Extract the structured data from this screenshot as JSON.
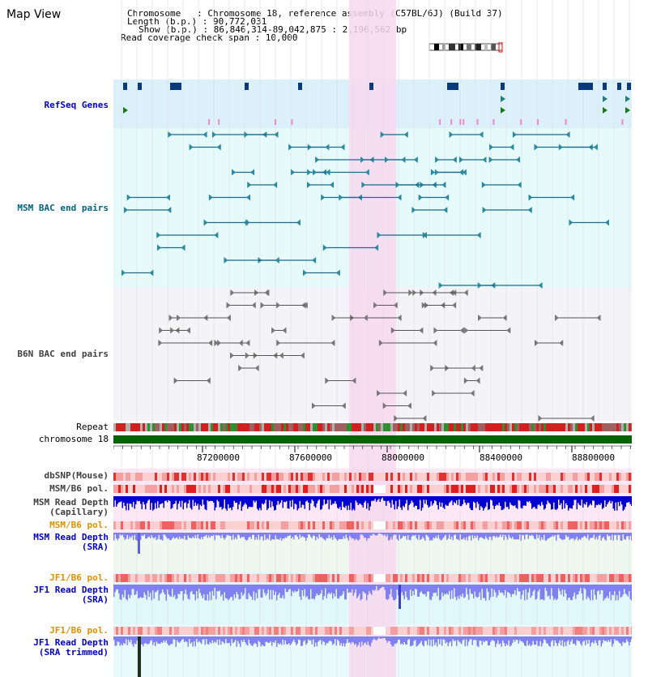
{
  "header": {
    "title": "Map View",
    "chromosome_line": "Chromosome   : Chromosome 18, reference assembly (C57BL/6J) (Build 37)",
    "length_line": "Length (b.p.) : 90,772,031",
    "show_line": "Show (b.p.) : 86,846,314-89,042,875 : 2,196,562 bp",
    "coverage_line": "Read coverage check span : 10,000"
  },
  "tracks": {
    "refseq": "RefSeq Genes",
    "msm_bac": "MSM BAC end pairs",
    "b6n_bac": "B6N BAC end pairs",
    "repeat": "Repeat",
    "chromosome": "chromosome 18",
    "dbsnp": "dbSNP(Mouse)",
    "msm_b6_pol": "MSM/B6 pol.",
    "msm_read_depth_cap_1": "MSM Read Depth",
    "msm_read_depth_cap_2": "(Capillary)",
    "msm_b6_pol_2": "MSM/B6 pol.",
    "msm_read_depth_sra_1": "MSM Read Depth",
    "msm_read_depth_sra_2": "(SRA)",
    "jf1_b6_pol": "JF1/B6 pol.",
    "jf1_read_depth_sra_1": "JF1 Read Depth",
    "jf1_read_depth_sra_2": "(SRA)",
    "jf1_b6_pol_2": "JF1/B6 pol.",
    "jf1_read_depth_trim_1": "JF1 Read Depth",
    "jf1_read_depth_trim_2": "(SRA trimmed)"
  },
  "axis": {
    "ticks": [
      "87200000",
      "87600000",
      "88000000",
      "88400000",
      "88800000"
    ]
  },
  "colors": {
    "refseq_bg": "#dcf0fa",
    "msm_bg": "#e6fafa",
    "b6n_bg": "#f4f4f8",
    "highlight": "#f8d8f0",
    "chromosome_bar": "#006400",
    "refseq_label": "#0000c8",
    "msm_label": "#006480",
    "b6n_label": "#404040",
    "pol_label_orange": "#e09000",
    "depth_blue": "#0000d0",
    "depth_light_blue": "#8080f0"
  },
  "icons": {
    "chromosome_ideogram": "chromosome-ideogram-icon"
  }
}
